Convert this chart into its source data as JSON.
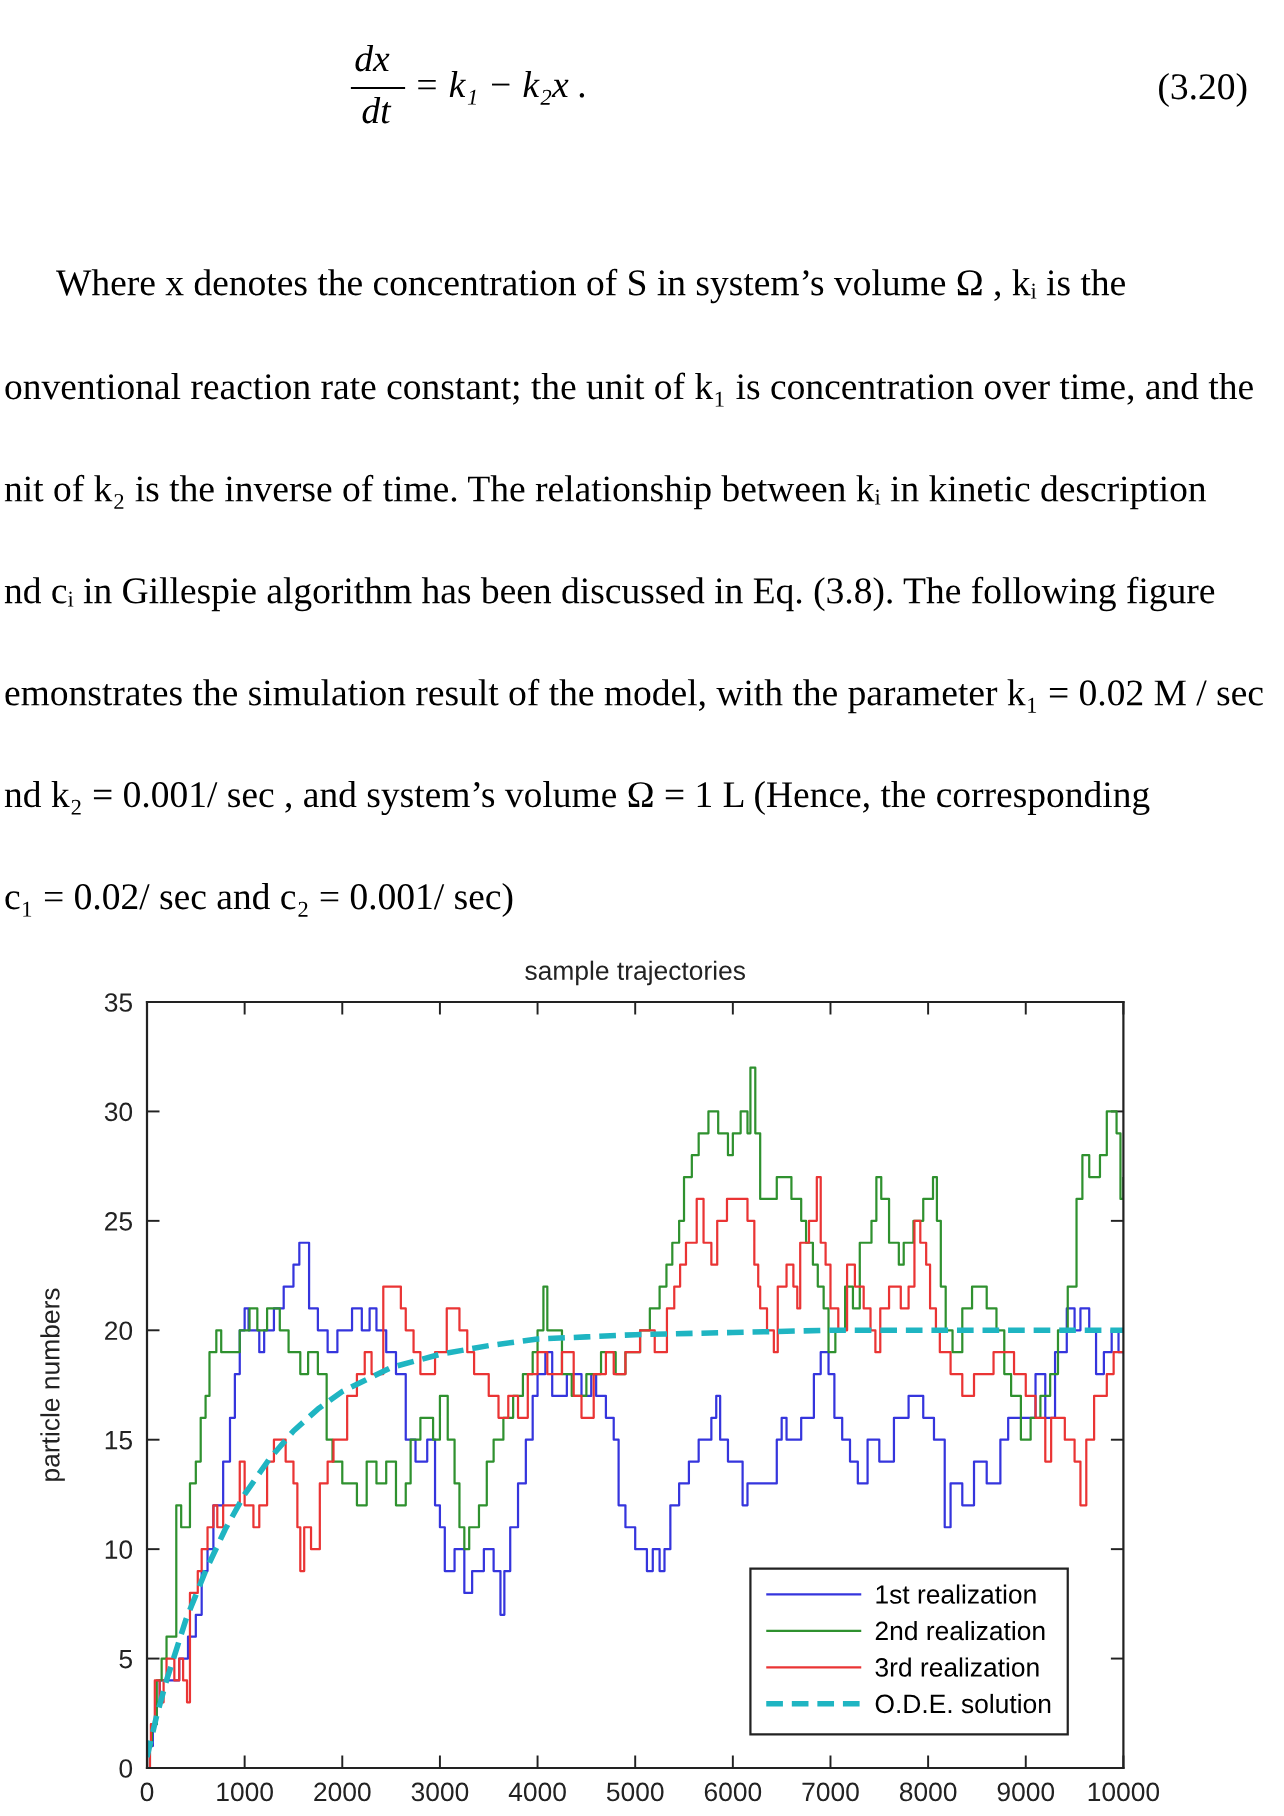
{
  "chart_data": {
    "type": "step",
    "title": "sample trajectories",
    "ylabel": "particle numbers",
    "xlim": [
      0,
      10000
    ],
    "xticks": [
      0,
      1000,
      2000,
      3000,
      4000,
      5000,
      6000,
      7000,
      8000,
      9000,
      10000
    ],
    "ylim": [
      0,
      35
    ],
    "yticks": [
      0,
      5,
      10,
      15,
      20,
      25,
      30,
      35
    ],
    "legend": "bottom right",
    "annotations": [
      "dx",
      "dt",
      "= k₁ − k₂x .",
      "(3.20)",
      "Where x denotes the concentration of S in system’s volume Ω , kᵢ is the",
      "onventional reaction rate constant; the unit of k₁ is concentration over time, and the",
      "nit of k₂ is the inverse of time. The relationship between kᵢ in kinetic description",
      "nd cᵢ in Gillespie algorithm has been discussed in Eq. (3.8). The following figure",
      "emonstrates the simulation result of the model, with the parameter k₁ = 0.02 M / sec",
      "nd k₂ = 0.001/ sec , and system’s volume Ω = 1 L (Hence, the corresponding",
      "c₁ = 0.02/ sec and c₂ = 0.001/ sec)"
    ],
    "series": [
      {
        "name": "1st realization",
        "color": "#3535dd",
        "x": [
          0,
          30,
          60,
          100,
          130,
          330,
          420,
          500,
          560,
          620,
          680,
          780,
          850,
          900,
          950,
          1000,
          1040,
          1150,
          1200,
          1300,
          1400,
          1500,
          1560,
          1660,
          1750,
          1850,
          1950,
          2100,
          2200,
          2280,
          2350,
          2450,
          2550,
          2650,
          2750,
          2870,
          2950,
          3000,
          3050,
          3150,
          3250,
          3330,
          3450,
          3550,
          3620,
          3660,
          3720,
          3800,
          3880,
          3950,
          4000,
          4080,
          4150,
          4300,
          4450,
          4550,
          4600,
          4700,
          4780,
          4830,
          4900,
          5000,
          5120,
          5180,
          5250,
          5300,
          5360,
          5450,
          5550,
          5650,
          5780,
          5830,
          5870,
          5950,
          6100,
          6150,
          6450,
          6500,
          6550,
          6700,
          6830,
          6900,
          6980,
          7040,
          7120,
          7200,
          7280,
          7380,
          7500,
          7650,
          7800,
          7950,
          8060,
          8170,
          8230,
          8350,
          8470,
          8600,
          8740,
          8820,
          9100,
          9200,
          9300,
          9420,
          9500,
          9560,
          9650,
          9720,
          9800,
          9880,
          9950,
          10000
        ],
        "values": [
          0,
          1,
          2,
          3,
          4,
          5,
          6,
          7,
          9,
          10,
          12,
          14,
          16,
          18,
          20,
          21,
          20,
          19,
          20,
          21,
          22,
          23,
          24,
          21,
          20,
          19,
          20,
          21,
          20,
          21,
          20,
          19,
          18,
          15,
          14,
          15,
          12,
          11,
          9,
          10,
          8,
          9,
          10,
          9,
          7,
          9,
          11,
          13,
          15,
          17,
          18,
          19,
          17,
          18,
          17,
          18,
          17,
          16,
          15,
          12,
          11,
          10,
          9,
          10,
          9,
          10,
          12,
          13,
          14,
          15,
          16,
          17,
          15,
          14,
          12,
          13,
          15,
          16,
          15,
          16,
          18,
          19,
          18,
          16,
          15,
          14,
          13,
          15,
          14,
          16,
          17,
          16,
          15,
          11,
          13,
          12,
          14,
          13,
          15,
          16,
          18,
          16,
          19,
          21,
          20,
          21,
          20,
          18,
          19,
          20,
          19,
          19
        ]
      },
      {
        "name": "2nd realization",
        "color": "#2f912f",
        "x": [
          0,
          30,
          50,
          100,
          150,
          200,
          300,
          350,
          440,
          500,
          550,
          600,
          640,
          710,
          760,
          950,
          1050,
          1130,
          1230,
          1360,
          1450,
          1570,
          1650,
          1750,
          1840,
          1900,
          2000,
          2150,
          2250,
          2350,
          2450,
          2550,
          2650,
          2700,
          2800,
          2930,
          3000,
          3080,
          3150,
          3200,
          3250,
          3300,
          3400,
          3480,
          3550,
          3650,
          3750,
          3850,
          3950,
          4000,
          4060,
          4100,
          4250,
          4350,
          4500,
          4650,
          4800,
          4900,
          5050,
          5150,
          5250,
          5320,
          5380,
          5450,
          5500,
          5580,
          5650,
          5750,
          5850,
          5950,
          6000,
          6080,
          6150,
          6180,
          6230,
          6280,
          6450,
          6600,
          6700,
          6750,
          6820,
          6870,
          6930,
          6980,
          7050,
          7150,
          7230,
          7300,
          7420,
          7470,
          7520,
          7600,
          7700,
          7750,
          7850,
          7950,
          8050,
          8090,
          8130,
          8180,
          8250,
          8350,
          8450,
          8600,
          8700,
          8780,
          8850,
          8950,
          9050,
          9150,
          9250,
          9330,
          9430,
          9520,
          9580,
          9650,
          9760,
          9830,
          9930,
          9970,
          10000
        ],
        "values": [
          0,
          1,
          2,
          4,
          5,
          6,
          12,
          11,
          13,
          14,
          16,
          17,
          19,
          20,
          19,
          20,
          21,
          20,
          21,
          20,
          19,
          18,
          19,
          18,
          15,
          14,
          13,
          12,
          14,
          13,
          14,
          12,
          13,
          15,
          16,
          15,
          17,
          15,
          13,
          11,
          10,
          11,
          12,
          14,
          15,
          16,
          17,
          18,
          19,
          20,
          22,
          20,
          18,
          17,
          18,
          19,
          18,
          19,
          20,
          21,
          22,
          23,
          24,
          25,
          27,
          28,
          29,
          30,
          29,
          28,
          29,
          30,
          29,
          32,
          29,
          26,
          27,
          26,
          25,
          24,
          23,
          22,
          21,
          19,
          20,
          22,
          21,
          24,
          25,
          27,
          26,
          24,
          23,
          24,
          25,
          26,
          27,
          25,
          22,
          20,
          19,
          21,
          22,
          21,
          20,
          18,
          17,
          15,
          16,
          17,
          18,
          20,
          22,
          26,
          28,
          27,
          28,
          30,
          29,
          26,
          27
        ]
      },
      {
        "name": "3rd realization",
        "color": "#ea3434",
        "x": [
          0,
          30,
          40,
          80,
          130,
          170,
          200,
          280,
          330,
          370,
          410,
          440,
          520,
          560,
          620,
          680,
          720,
          780,
          950,
          1000,
          1090,
          1150,
          1230,
          1300,
          1420,
          1500,
          1540,
          1570,
          1610,
          1680,
          1770,
          1850,
          1910,
          2050,
          2150,
          2230,
          2300,
          2420,
          2600,
          2650,
          2730,
          2800,
          2950,
          3070,
          3200,
          3280,
          3350,
          3500,
          3600,
          3700,
          3800,
          3900,
          4000,
          4100,
          4250,
          4370,
          4450,
          4575,
          4700,
          4780,
          4900,
          5050,
          5200,
          5325,
          5400,
          5460,
          5520,
          5630,
          5700,
          5780,
          5840,
          5940,
          6150,
          6220,
          6260,
          6280,
          6350,
          6420,
          6460,
          6550,
          6620,
          6660,
          6690,
          6780,
          6860,
          6900,
          6950,
          7000,
          7080,
          7170,
          7250,
          7340,
          7410,
          7460,
          7510,
          7600,
          7720,
          7800,
          7860,
          7920,
          7980,
          8020,
          8080,
          8120,
          8230,
          8350,
          8470,
          8670,
          8880,
          9000,
          9100,
          9200,
          9260,
          9400,
          9500,
          9560,
          9620,
          9700,
          9830,
          9900,
          10000
        ],
        "values": [
          0,
          1,
          2,
          4,
          3,
          4,
          5,
          4,
          5,
          4,
          3,
          8,
          9,
          10,
          11,
          12,
          11,
          12,
          14,
          12,
          11,
          12,
          14,
          15,
          14,
          13,
          11,
          9,
          11,
          10,
          13,
          14,
          15,
          17,
          18,
          19,
          18,
          22,
          21,
          20,
          19,
          18,
          19,
          21,
          20,
          19,
          18,
          17,
          16,
          17,
          16,
          18,
          19,
          18,
          19,
          17,
          16,
          18,
          19,
          18,
          19,
          20,
          19,
          21,
          22,
          23,
          24,
          26,
          24,
          23,
          25,
          26,
          25,
          23,
          22,
          21,
          20,
          19,
          22,
          23,
          22,
          21,
          24,
          25,
          27,
          24,
          23,
          21,
          20,
          23,
          22,
          21,
          20,
          19,
          21,
          22,
          21,
          22,
          25,
          24,
          23,
          21,
          20,
          19,
          18,
          17,
          18,
          19,
          18,
          17,
          16,
          14,
          16,
          15,
          14,
          12,
          15,
          17,
          18,
          19,
          19
        ]
      },
      {
        "name": "O.D.E. solution",
        "type": "line",
        "line_style": "dashed",
        "color": "#1fb5c2",
        "x": [
          0,
          100,
          200,
          300,
          400,
          500,
          600,
          800,
          1000,
          1250,
          1500,
          1750,
          2000,
          2500,
          3000,
          3500,
          4000,
          4500,
          5000,
          6000,
          7000,
          8000,
          9000,
          10000
        ],
        "values": [
          0.5,
          2.4,
          4.0,
          5.4,
          6.8,
          7.9,
          9.0,
          10.9,
          12.5,
          14.1,
          15.4,
          16.4,
          17.2,
          18.3,
          18.9,
          19.3,
          19.6,
          19.7,
          19.8,
          19.9,
          20,
          20,
          20,
          20
        ]
      }
    ]
  }
}
